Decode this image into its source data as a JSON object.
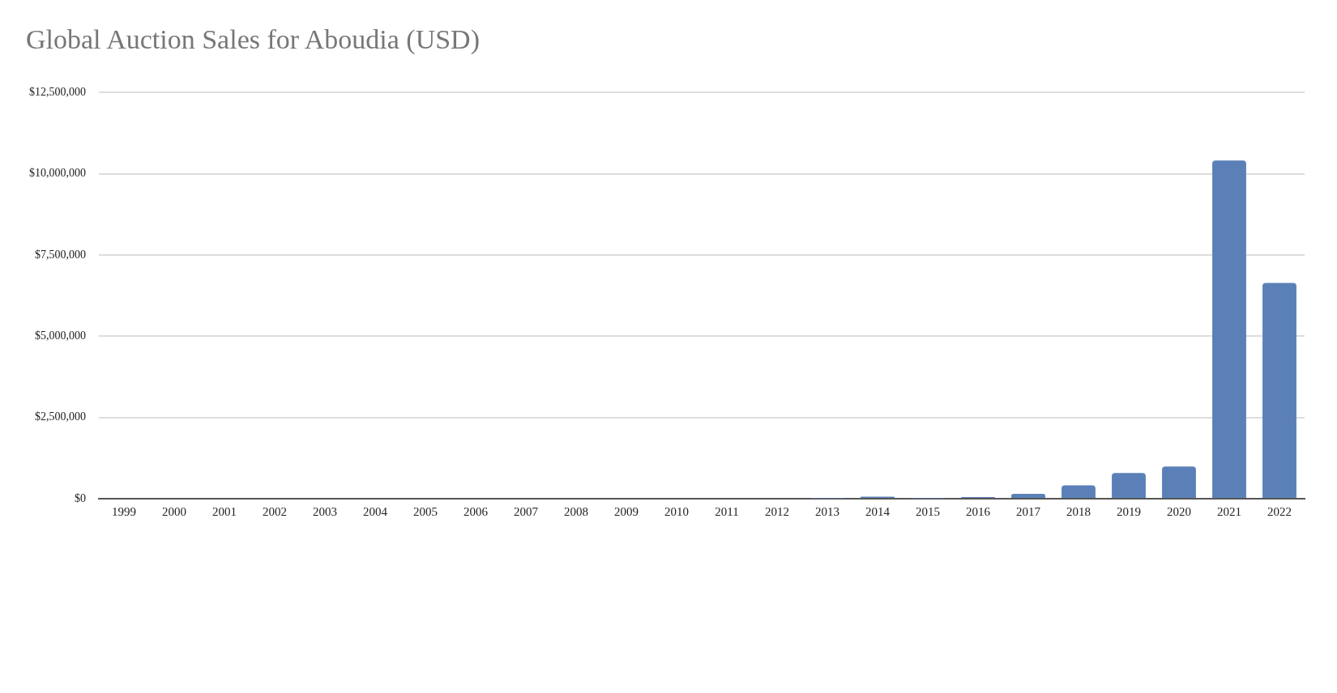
{
  "chart_data": {
    "type": "bar",
    "title": "Global Auction Sales for Aboudia (USD)",
    "categories": [
      "1999",
      "2000",
      "2001",
      "2002",
      "2003",
      "2004",
      "2005",
      "2006",
      "2007",
      "2008",
      "2009",
      "2010",
      "2011",
      "2012",
      "2013",
      "2014",
      "2015",
      "2016",
      "2017",
      "2018",
      "2019",
      "2020",
      "2021",
      "2022"
    ],
    "values": [
      0,
      0,
      0,
      0,
      0,
      0,
      0,
      0,
      0,
      0,
      0,
      0,
      0,
      0,
      10000,
      60000,
      10000,
      50000,
      150000,
      410000,
      790000,
      990000,
      10410000,
      6640000
    ],
    "color": "#5b80b8",
    "ylim": [
      0,
      12500000
    ],
    "yticks": [
      {
        "value": 0,
        "label": "$0"
      },
      {
        "value": 2500000,
        "label": "$2,500,000"
      },
      {
        "value": 5000000,
        "label": "$5,000,000"
      },
      {
        "value": 7500000,
        "label": "$7,500,000"
      },
      {
        "value": 10000000,
        "label": "$10,000,000"
      },
      {
        "value": 12500000,
        "label": "$12,500,000"
      }
    ],
    "grid": "y",
    "legend": false
  }
}
